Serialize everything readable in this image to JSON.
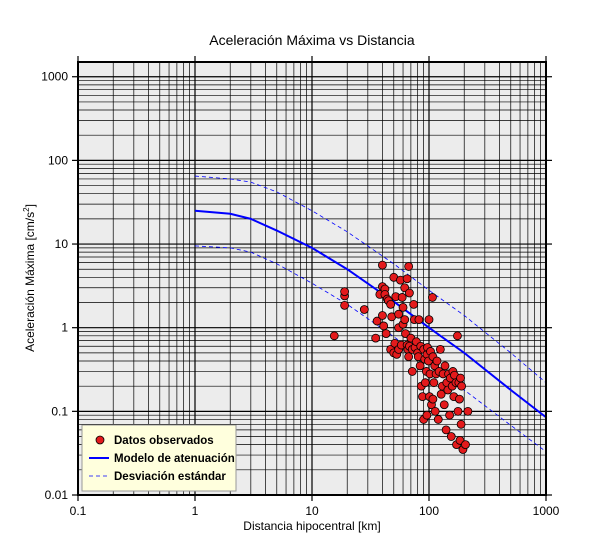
{
  "chart_data": {
    "type": "scatter",
    "title": "Aceleración Máxima vs Distancia",
    "xlabel": "Distancia hipocentral [km]",
    "ylabel_main": "Aceleración Máxima [cm/s",
    "ylabel_sup": "2",
    "ylabel_end": "]",
    "x_scale": "log",
    "y_scale": "log",
    "xlim": [
      0.1,
      1000
    ],
    "ylim": [
      0.01,
      1500
    ],
    "x_ticks": [
      {
        "value": 0.1,
        "label": "0.1"
      },
      {
        "value": 1,
        "label": "1"
      },
      {
        "value": 10,
        "label": "10"
      },
      {
        "value": 100,
        "label": "100"
      },
      {
        "value": 1000,
        "label": "1000"
      }
    ],
    "y_ticks": [
      {
        "value": 0.01,
        "label": "0.01"
      },
      {
        "value": 0.1,
        "label": "0.1"
      },
      {
        "value": 1,
        "label": "1"
      },
      {
        "value": 10,
        "label": "10"
      },
      {
        "value": 100,
        "label": "100"
      },
      {
        "value": 1000,
        "label": "1000"
      }
    ],
    "grid": true,
    "legend_position": "bottom-left",
    "colors": {
      "plot_bg": "#ececec",
      "points": "#e31a1c",
      "model": "#0000ff",
      "legend_bg": "#ffffdd"
    },
    "series": [
      {
        "name": "Datos observados",
        "kind": "scatter",
        "points": [
          [
            15.5,
            0.8
          ],
          [
            19,
            1.85
          ],
          [
            19,
            2.4
          ],
          [
            19,
            2.7
          ],
          [
            28,
            1.65
          ],
          [
            35,
            0.75
          ],
          [
            36,
            1.2
          ],
          [
            38,
            2.5
          ],
          [
            40,
            5.6
          ],
          [
            40,
            3.1
          ],
          [
            42,
            2.9
          ],
          [
            42,
            2.5
          ],
          [
            44,
            2.2
          ],
          [
            40,
            1.4
          ],
          [
            41,
            1.05
          ],
          [
            43,
            0.85
          ],
          [
            45,
            2.1
          ],
          [
            47,
            1.9
          ],
          [
            48,
            1.35
          ],
          [
            50,
            4.0
          ],
          [
            52,
            2.35
          ],
          [
            55,
            1.45
          ],
          [
            55,
            1.0
          ],
          [
            57,
            3.7
          ],
          [
            59,
            2.3
          ],
          [
            60,
            1.75
          ],
          [
            62,
            3.0
          ],
          [
            65,
            3.85
          ],
          [
            67,
            5.4
          ],
          [
            68,
            2.6
          ],
          [
            47,
            0.55
          ],
          [
            50,
            0.5
          ],
          [
            51,
            0.65
          ],
          [
            53,
            0.48
          ],
          [
            55,
            0.55
          ],
          [
            58,
            0.62
          ],
          [
            60,
            1.1
          ],
          [
            62,
            1.25
          ],
          [
            63,
            0.85
          ],
          [
            65,
            0.62
          ],
          [
            66,
            0.55
          ],
          [
            67,
            0.45
          ],
          [
            68,
            0.6
          ],
          [
            70,
            0.75
          ],
          [
            72,
            0.55
          ],
          [
            72,
            0.3
          ],
          [
            74,
            1.9
          ],
          [
            75,
            1.25
          ],
          [
            76,
            0.58
          ],
          [
            78,
            0.68
          ],
          [
            80,
            0.5
          ],
          [
            81,
            0.45
          ],
          [
            82,
            1.25
          ],
          [
            84,
            0.35
          ],
          [
            85,
            0.6
          ],
          [
            86,
            0.2
          ],
          [
            88,
            0.15
          ],
          [
            90,
            0.08
          ],
          [
            90,
            0.55
          ],
          [
            92,
            0.42
          ],
          [
            93,
            0.22
          ],
          [
            95,
            0.3
          ],
          [
            96,
            0.48
          ],
          [
            97,
            0.58
          ],
          [
            99,
            0.4
          ],
          [
            100,
            1.25
          ],
          [
            101,
            0.15
          ],
          [
            102,
            0.28
          ],
          [
            103,
            0.52
          ],
          [
            105,
            0.12
          ],
          [
            107,
            2.3
          ],
          [
            108,
            0.45
          ],
          [
            110,
            0.22
          ],
          [
            112,
            0.35
          ],
          [
            113,
            0.1
          ],
          [
            115,
            0.28
          ],
          [
            117,
            0.4
          ],
          [
            120,
            0.08
          ],
          [
            122,
            0.3
          ],
          [
            125,
            0.55
          ],
          [
            127,
            0.16
          ],
          [
            130,
            0.2
          ],
          [
            132,
            0.28
          ],
          [
            135,
            0.12
          ],
          [
            137,
            0.35
          ],
          [
            140,
            0.06
          ],
          [
            142,
            0.22
          ],
          [
            145,
            0.18
          ],
          [
            147,
            0.28
          ],
          [
            150,
            0.09
          ],
          [
            152,
            0.25
          ],
          [
            155,
            0.05
          ],
          [
            158,
            0.2
          ],
          [
            160,
            0.3
          ],
          [
            163,
            0.15
          ],
          [
            165,
            0.27
          ],
          [
            170,
            0.22
          ],
          [
            172,
            0.04
          ],
          [
            175,
            0.8
          ],
          [
            177,
            0.1
          ],
          [
            180,
            0.22
          ],
          [
            182,
            0.14
          ],
          [
            184,
            0.045
          ],
          [
            186,
            0.25
          ],
          [
            188,
            0.07
          ],
          [
            190,
            0.2
          ],
          [
            195,
            0.035
          ],
          [
            205,
            0.04
          ],
          [
            215,
            0.1
          ],
          [
            96,
            0.09
          ],
          [
            108,
            0.14
          ]
        ]
      },
      {
        "name": "Modelo de atenuación",
        "kind": "line",
        "points": [
          [
            1,
            25
          ],
          [
            2,
            23
          ],
          [
            3,
            20
          ],
          [
            5,
            14.5
          ],
          [
            10,
            9
          ],
          [
            20,
            5
          ],
          [
            50,
            2.05
          ],
          [
            100,
            1.0
          ],
          [
            200,
            0.5
          ],
          [
            500,
            0.18
          ],
          [
            1000,
            0.085
          ]
        ]
      },
      {
        "name": "Desviación estándar",
        "kind": "dashed",
        "bands": [
          [
            [
              1,
              65
            ],
            [
              2,
              60
            ],
            [
              3,
              55
            ],
            [
              5,
              42
            ],
            [
              10,
              25
            ],
            [
              20,
              14
            ],
            [
              50,
              5.8
            ],
            [
              100,
              2.8
            ],
            [
              200,
              1.4
            ],
            [
              500,
              0.5
            ],
            [
              1000,
              0.22
            ]
          ],
          [
            [
              1,
              9.5
            ],
            [
              2,
              9
            ],
            [
              3,
              8
            ],
            [
              5,
              5.8
            ],
            [
              10,
              3.4
            ],
            [
              20,
              1.9
            ],
            [
              50,
              0.78
            ],
            [
              100,
              0.38
            ],
            [
              200,
              0.18
            ],
            [
              500,
              0.068
            ],
            [
              1000,
              0.033
            ]
          ]
        ]
      }
    ]
  }
}
